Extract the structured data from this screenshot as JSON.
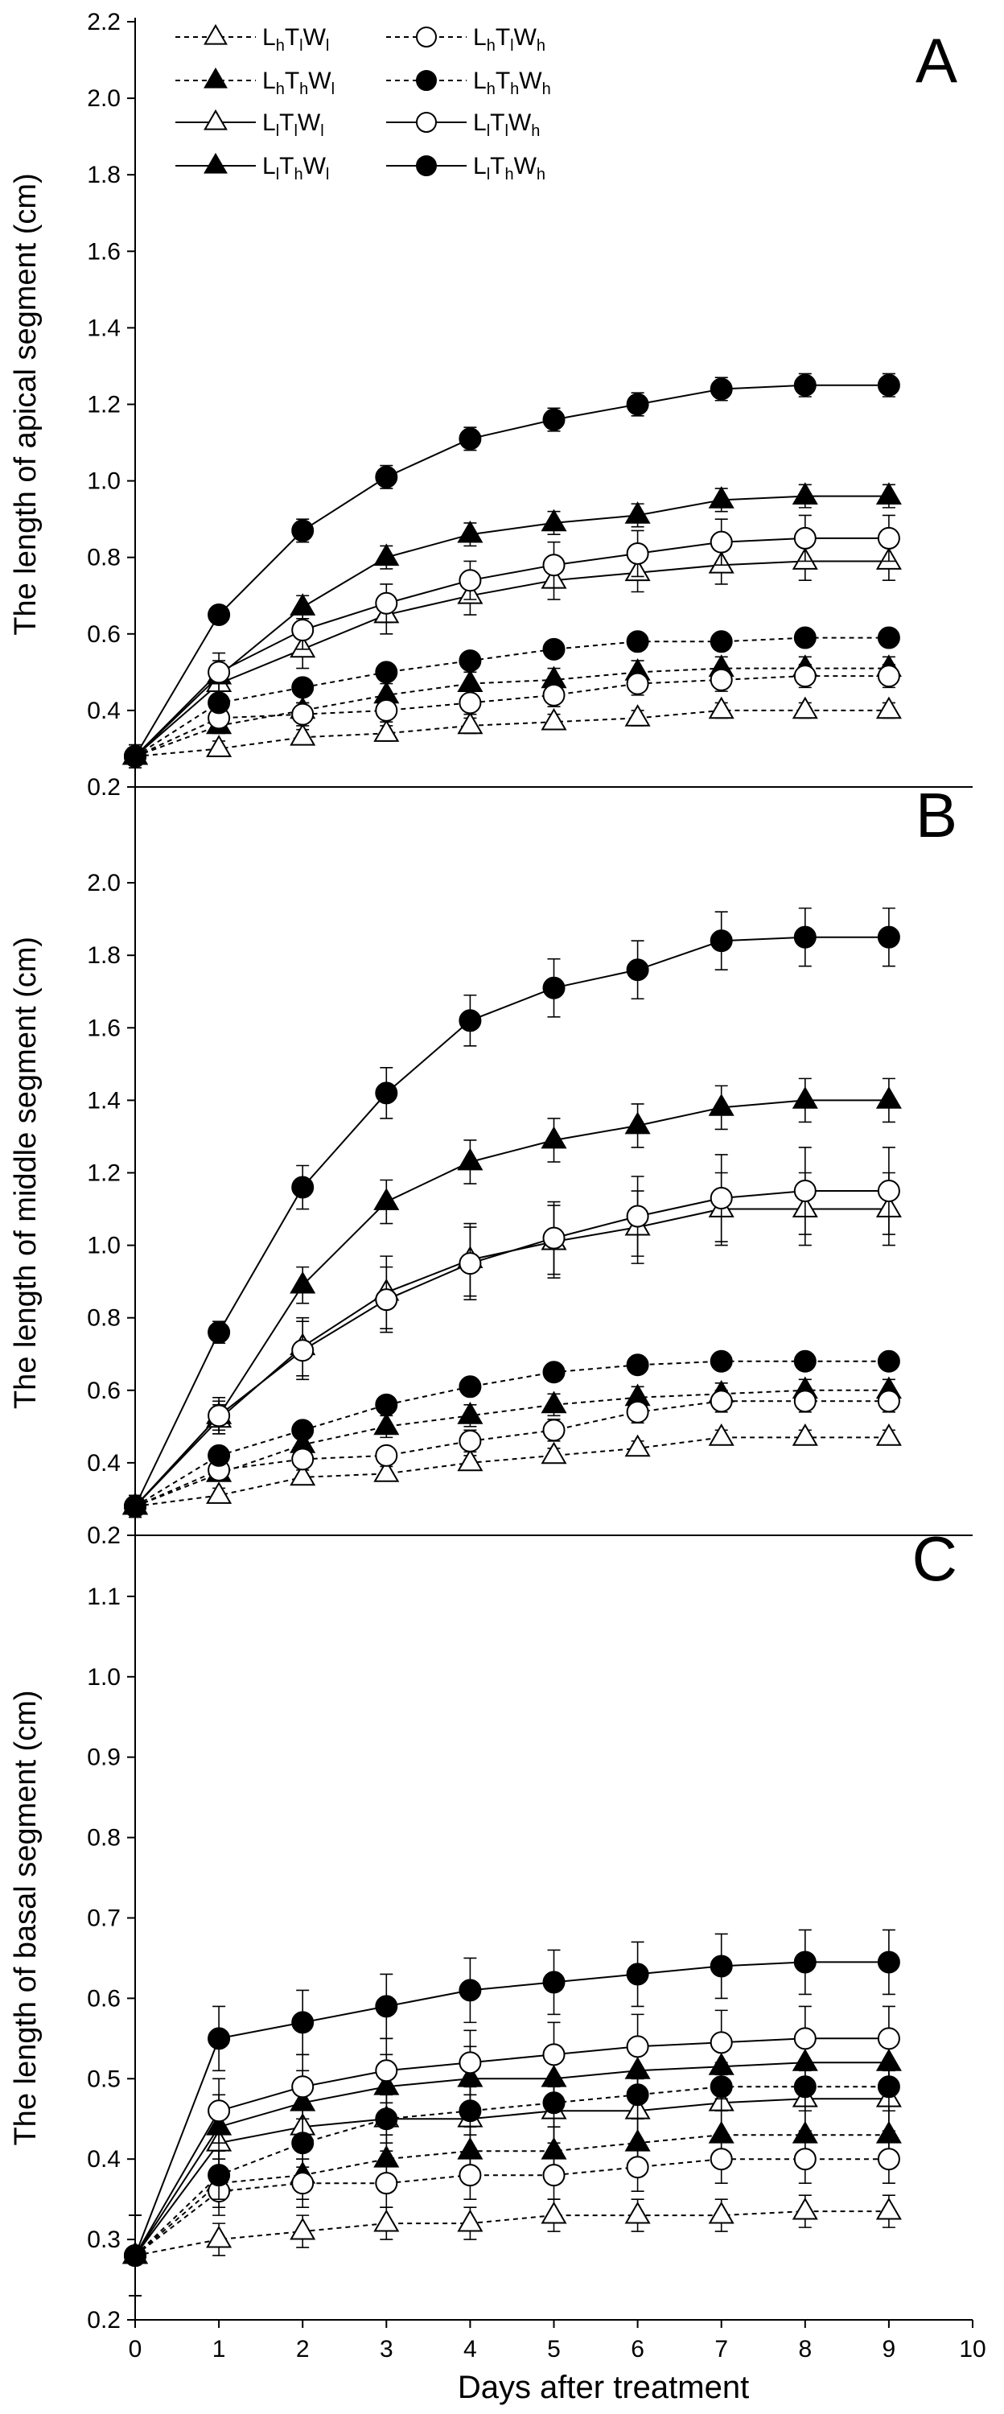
{
  "chart_data": [
    {
      "type": "line",
      "panel": "A",
      "ylabel": "The length of apical segment (cm)",
      "xlabel": "",
      "ylim": [
        0.2,
        2.2
      ],
      "yticks": [
        "0.2",
        "0.4",
        "0.6",
        "0.8",
        "1.0",
        "1.2",
        "1.4",
        "1.6",
        "1.8",
        "2.0",
        "2.2"
      ],
      "xlim": [
        0,
        10
      ],
      "x": [
        0,
        1,
        2,
        3,
        4,
        5,
        6,
        7,
        8,
        9
      ],
      "legend": {
        "position": "top-left",
        "columns": 2
      },
      "series": [
        {
          "key": "LhTlWl",
          "base": "L",
          "s1": "h",
          "m": "T",
          "s2": "l",
          "e": "W",
          "s3": "l",
          "marker": "triangle",
          "fill": "open",
          "line": "dashed",
          "values": [
            0.28,
            0.3,
            0.33,
            0.34,
            0.36,
            0.37,
            0.38,
            0.4,
            0.4,
            0.4
          ],
          "errors": [
            0.02,
            0.02,
            0.02,
            0.02,
            0.02,
            0.02,
            0.02,
            0.02,
            0.02,
            0.02
          ]
        },
        {
          "key": "LhThWl",
          "base": "L",
          "s1": "h",
          "m": "T",
          "s2": "h",
          "e": "W",
          "s3": "l",
          "marker": "triangle",
          "fill": "filled",
          "line": "dashed",
          "values": [
            0.28,
            0.36,
            0.4,
            0.44,
            0.47,
            0.48,
            0.5,
            0.51,
            0.51,
            0.51
          ],
          "errors": [
            0.02,
            0.02,
            0.02,
            0.03,
            0.03,
            0.03,
            0.03,
            0.03,
            0.03,
            0.03
          ]
        },
        {
          "key": "LlTlWl",
          "base": "L",
          "s1": "l",
          "m": "T",
          "s2": "l",
          "e": "W",
          "s3": "l",
          "marker": "triangle",
          "fill": "open",
          "line": "solid",
          "values": [
            0.28,
            0.47,
            0.56,
            0.65,
            0.7,
            0.74,
            0.76,
            0.78,
            0.79,
            0.79
          ],
          "errors": [
            0.03,
            0.04,
            0.05,
            0.05,
            0.05,
            0.05,
            0.05,
            0.05,
            0.05,
            0.05
          ]
        },
        {
          "key": "LlThWl",
          "base": "L",
          "s1": "l",
          "m": "T",
          "s2": "h",
          "e": "W",
          "s3": "l",
          "marker": "triangle",
          "fill": "filled",
          "line": "solid",
          "values": [
            0.28,
            0.49,
            0.67,
            0.8,
            0.86,
            0.89,
            0.91,
            0.95,
            0.96,
            0.96
          ],
          "errors": [
            0.03,
            0.04,
            0.03,
            0.03,
            0.03,
            0.03,
            0.03,
            0.03,
            0.03,
            0.03
          ]
        },
        {
          "key": "LhTlWh",
          "base": "L",
          "s1": "h",
          "m": "T",
          "s2": "l",
          "e": "W",
          "s3": "h",
          "marker": "circle",
          "fill": "open",
          "line": "dashed",
          "values": [
            0.28,
            0.38,
            0.39,
            0.4,
            0.42,
            0.44,
            0.47,
            0.48,
            0.49,
            0.49
          ],
          "errors": [
            0.02,
            0.03,
            0.03,
            0.03,
            0.03,
            0.03,
            0.03,
            0.03,
            0.03,
            0.03
          ]
        },
        {
          "key": "LhThWh",
          "base": "L",
          "s1": "h",
          "m": "T",
          "s2": "h",
          "e": "W",
          "s3": "h",
          "marker": "circle",
          "fill": "filled",
          "line": "dashed",
          "values": [
            0.28,
            0.42,
            0.46,
            0.5,
            0.53,
            0.56,
            0.58,
            0.58,
            0.59,
            0.59
          ],
          "errors": [
            0.02,
            0.02,
            0.02,
            0.02,
            0.02,
            0.02,
            0.02,
            0.02,
            0.02,
            0.02
          ]
        },
        {
          "key": "LlTlWh",
          "base": "L",
          "s1": "l",
          "m": "T",
          "s2": "l",
          "e": "W",
          "s3": "h",
          "marker": "circle",
          "fill": "open",
          "line": "solid",
          "values": [
            0.28,
            0.5,
            0.61,
            0.68,
            0.74,
            0.78,
            0.81,
            0.84,
            0.85,
            0.85
          ],
          "errors": [
            0.03,
            0.05,
            0.05,
            0.05,
            0.05,
            0.06,
            0.06,
            0.06,
            0.06,
            0.06
          ]
        },
        {
          "key": "LlThWh",
          "base": "L",
          "s1": "l",
          "m": "T",
          "s2": "h",
          "e": "W",
          "s3": "h",
          "marker": "circle",
          "fill": "filled",
          "line": "solid",
          "values": [
            0.28,
            0.65,
            0.87,
            1.01,
            1.11,
            1.16,
            1.2,
            1.24,
            1.25,
            1.25
          ],
          "errors": [
            0.02,
            0.02,
            0.03,
            0.03,
            0.03,
            0.03,
            0.03,
            0.03,
            0.03,
            0.03
          ]
        }
      ]
    },
    {
      "type": "line",
      "panel": "B",
      "ylabel": "The length of middle segment (cm)",
      "xlabel": "",
      "ylim": [
        0.2,
        2.2
      ],
      "yticks": [
        "0.2",
        "0.4",
        "0.6",
        "0.8",
        "1.0",
        "1.2",
        "1.4",
        "1.6",
        "1.8",
        "2.0"
      ],
      "xlim": [
        0,
        10
      ],
      "x": [
        0,
        1,
        2,
        3,
        4,
        5,
        6,
        7,
        8,
        9
      ],
      "series": [
        {
          "key": "LhTlWl",
          "marker": "triangle",
          "fill": "open",
          "line": "dashed",
          "values": [
            0.28,
            0.31,
            0.36,
            0.37,
            0.4,
            0.42,
            0.44,
            0.47,
            0.47,
            0.47
          ],
          "errors": [
            0.02,
            0.02,
            0.02,
            0.02,
            0.02,
            0.02,
            0.02,
            0.02,
            0.02,
            0.02
          ]
        },
        {
          "key": "LhThWl",
          "marker": "triangle",
          "fill": "filled",
          "line": "dashed",
          "values": [
            0.28,
            0.37,
            0.45,
            0.5,
            0.53,
            0.56,
            0.58,
            0.59,
            0.6,
            0.6
          ],
          "errors": [
            0.02,
            0.02,
            0.02,
            0.03,
            0.03,
            0.03,
            0.03,
            0.03,
            0.03,
            0.03
          ]
        },
        {
          "key": "LlTlWl",
          "marker": "triangle",
          "fill": "open",
          "line": "solid",
          "values": [
            0.28,
            0.52,
            0.72,
            0.87,
            0.96,
            1.01,
            1.05,
            1.1,
            1.1,
            1.1
          ],
          "errors": [
            0.03,
            0.04,
            0.08,
            0.1,
            0.1,
            0.1,
            0.1,
            0.1,
            0.1,
            0.1
          ]
        },
        {
          "key": "LlThWl",
          "marker": "triangle",
          "fill": "filled",
          "line": "solid",
          "values": [
            0.28,
            0.53,
            0.89,
            1.12,
            1.23,
            1.29,
            1.33,
            1.38,
            1.4,
            1.4
          ],
          "errors": [
            0.03,
            0.04,
            0.05,
            0.06,
            0.06,
            0.06,
            0.06,
            0.06,
            0.06,
            0.06
          ]
        },
        {
          "key": "LhTlWh",
          "marker": "circle",
          "fill": "open",
          "line": "dashed",
          "values": [
            0.28,
            0.38,
            0.41,
            0.42,
            0.46,
            0.49,
            0.54,
            0.57,
            0.57,
            0.57
          ],
          "errors": [
            0.02,
            0.02,
            0.02,
            0.02,
            0.03,
            0.03,
            0.03,
            0.03,
            0.03,
            0.03
          ]
        },
        {
          "key": "LhThWh",
          "marker": "circle",
          "fill": "filled",
          "line": "dashed",
          "values": [
            0.28,
            0.42,
            0.49,
            0.56,
            0.61,
            0.65,
            0.67,
            0.68,
            0.68,
            0.68
          ],
          "errors": [
            0.02,
            0.02,
            0.02,
            0.02,
            0.02,
            0.02,
            0.02,
            0.02,
            0.02,
            0.02
          ]
        },
        {
          "key": "LlTlWh",
          "marker": "circle",
          "fill": "open",
          "line": "solid",
          "values": [
            0.28,
            0.53,
            0.71,
            0.85,
            0.95,
            1.02,
            1.08,
            1.13,
            1.15,
            1.15
          ],
          "errors": [
            0.03,
            0.05,
            0.08,
            0.09,
            0.1,
            0.1,
            0.11,
            0.12,
            0.12,
            0.12
          ]
        },
        {
          "key": "LlThWh",
          "marker": "circle",
          "fill": "filled",
          "line": "solid",
          "values": [
            0.28,
            0.76,
            1.16,
            1.42,
            1.62,
            1.71,
            1.76,
            1.84,
            1.85,
            1.85
          ],
          "errors": [
            0.02,
            0.03,
            0.06,
            0.07,
            0.07,
            0.08,
            0.08,
            0.08,
            0.08,
            0.08
          ]
        }
      ]
    },
    {
      "type": "line",
      "panel": "C",
      "ylabel": "The length of basal segment (cm)",
      "xlabel": "Days after treatment",
      "ylim": [
        0.2,
        1.2
      ],
      "yticks": [
        "0.2",
        "0.3",
        "0.4",
        "0.5",
        "0.6",
        "0.7",
        "0.8",
        "0.9",
        "1.0",
        "1.1"
      ],
      "xlim": [
        0,
        10
      ],
      "xticks": [
        "0",
        "1",
        "2",
        "3",
        "4",
        "5",
        "6",
        "7",
        "8",
        "9",
        "10"
      ],
      "x": [
        0,
        1,
        2,
        3,
        4,
        5,
        6,
        7,
        8,
        9
      ],
      "series": [
        {
          "key": "LhTlWl",
          "marker": "triangle",
          "fill": "open",
          "line": "dashed",
          "values": [
            0.28,
            0.3,
            0.31,
            0.32,
            0.32,
            0.33,
            0.33,
            0.33,
            0.335,
            0.335
          ],
          "errors": [
            0.05,
            0.02,
            0.02,
            0.02,
            0.02,
            0.02,
            0.02,
            0.02,
            0.02,
            0.02
          ]
        },
        {
          "key": "LhThWl",
          "marker": "triangle",
          "fill": "filled",
          "line": "dashed",
          "values": [
            0.28,
            0.37,
            0.38,
            0.4,
            0.41,
            0.41,
            0.42,
            0.43,
            0.43,
            0.43
          ],
          "errors": [
            0.05,
            0.03,
            0.03,
            0.03,
            0.03,
            0.03,
            0.03,
            0.03,
            0.03,
            0.03
          ]
        },
        {
          "key": "LlTlWl",
          "marker": "triangle",
          "fill": "open",
          "line": "solid",
          "values": [
            0.28,
            0.42,
            0.44,
            0.45,
            0.45,
            0.46,
            0.46,
            0.47,
            0.475,
            0.475
          ],
          "errors": [
            0.05,
            0.04,
            0.04,
            0.04,
            0.04,
            0.04,
            0.04,
            0.04,
            0.04,
            0.04
          ]
        },
        {
          "key": "LlThWl",
          "marker": "triangle",
          "fill": "filled",
          "line": "solid",
          "values": [
            0.28,
            0.44,
            0.47,
            0.49,
            0.5,
            0.5,
            0.51,
            0.515,
            0.52,
            0.52
          ],
          "errors": [
            0.05,
            0.04,
            0.04,
            0.04,
            0.04,
            0.04,
            0.04,
            0.04,
            0.04,
            0.04
          ]
        },
        {
          "key": "LhTlWh",
          "marker": "circle",
          "fill": "open",
          "line": "dashed",
          "values": [
            0.28,
            0.36,
            0.37,
            0.37,
            0.38,
            0.38,
            0.39,
            0.4,
            0.4,
            0.4
          ],
          "errors": [
            0.05,
            0.03,
            0.03,
            0.03,
            0.03,
            0.03,
            0.03,
            0.03,
            0.03,
            0.03
          ]
        },
        {
          "key": "LhThWh",
          "marker": "circle",
          "fill": "filled",
          "line": "dashed",
          "values": [
            0.28,
            0.38,
            0.42,
            0.45,
            0.46,
            0.47,
            0.48,
            0.49,
            0.49,
            0.49
          ],
          "errors": [
            0.05,
            0.03,
            0.03,
            0.03,
            0.03,
            0.03,
            0.03,
            0.03,
            0.03,
            0.03
          ]
        },
        {
          "key": "LlTlWh",
          "marker": "circle",
          "fill": "open",
          "line": "solid",
          "values": [
            0.28,
            0.46,
            0.49,
            0.51,
            0.52,
            0.53,
            0.54,
            0.545,
            0.55,
            0.55
          ],
          "errors": [
            0.05,
            0.04,
            0.04,
            0.04,
            0.04,
            0.04,
            0.04,
            0.04,
            0.04,
            0.04
          ]
        },
        {
          "key": "LlThWh",
          "marker": "circle",
          "fill": "filled",
          "line": "solid",
          "values": [
            0.28,
            0.55,
            0.57,
            0.59,
            0.61,
            0.62,
            0.63,
            0.64,
            0.645,
            0.645
          ],
          "errors": [
            0.05,
            0.04,
            0.04,
            0.04,
            0.04,
            0.04,
            0.04,
            0.04,
            0.04,
            0.04
          ]
        }
      ]
    }
  ]
}
